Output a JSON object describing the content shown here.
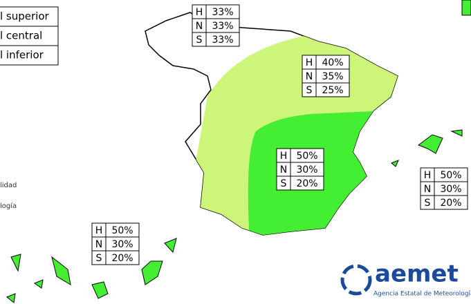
{
  "legend": {
    "items": [
      "l superior",
      "l central",
      "l inferior"
    ]
  },
  "notes": [
    "lidad",
    "logía"
  ],
  "regions": [
    {
      "rows": [
        {
          "label": "H",
          "value": "33%"
        },
        {
          "label": "N",
          "value": "33%"
        },
        {
          "label": "S",
          "value": "33%"
        }
      ]
    },
    {
      "rows": [
        {
          "label": "H",
          "value": "40%"
        },
        {
          "label": "N",
          "value": "35%"
        },
        {
          "label": "S",
          "value": "25%"
        }
      ]
    },
    {
      "rows": [
        {
          "label": "H",
          "value": "50%"
        },
        {
          "label": "N",
          "value": "30%"
        },
        {
          "label": "S",
          "value": "20%"
        }
      ]
    },
    {
      "rows": [
        {
          "label": "H",
          "value": "50%"
        },
        {
          "label": "N",
          "value": "30%"
        },
        {
          "label": "S",
          "value": "20%"
        }
      ]
    },
    {
      "rows": [
        {
          "label": "H",
          "value": "50%"
        },
        {
          "label": "N",
          "value": "30%"
        },
        {
          "label": "S",
          "value": "20%"
        }
      ]
    }
  ],
  "logo": {
    "name": "aemet",
    "subtitle": "Agencia Estatal de Meteorología"
  }
}
